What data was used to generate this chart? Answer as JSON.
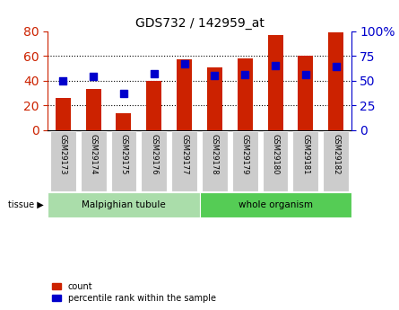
{
  "title": "GDS732 / 142959_at",
  "samples": [
    "GSM29173",
    "GSM29174",
    "GSM29175",
    "GSM29176",
    "GSM29177",
    "GSM29178",
    "GSM29179",
    "GSM29180",
    "GSM29181",
    "GSM29182"
  ],
  "counts": [
    26,
    33,
    14,
    40,
    57,
    51,
    58,
    77,
    60,
    79
  ],
  "percentiles": [
    50,
    54,
    37,
    57,
    67,
    55,
    56,
    65,
    56,
    64
  ],
  "tissue_groups": [
    {
      "label": "Malpighian tubule",
      "start": 0,
      "end": 5,
      "color": "#aaddaa"
    },
    {
      "label": "whole organism",
      "start": 5,
      "end": 10,
      "color": "#55cc55"
    }
  ],
  "bar_color": "#cc2200",
  "dot_color": "#0000cc",
  "left_axis_color": "#cc2200",
  "right_axis_color": "#0000cc",
  "left_ylim": [
    0,
    80
  ],
  "right_ylim": [
    0,
    100
  ],
  "left_yticks": [
    0,
    20,
    40,
    60,
    80
  ],
  "right_yticks": [
    0,
    25,
    50,
    75,
    100
  ],
  "right_yticklabels": [
    "0",
    "25",
    "50",
    "75",
    "100%"
  ],
  "grid_color": "black",
  "grid_style": "dotted",
  "grid_values": [
    20,
    40,
    60
  ],
  "bar_width": 0.5,
  "dot_size": 40,
  "tissue_label": "tissue",
  "legend_count_label": "count",
  "legend_pct_label": "percentile rank within the sample",
  "bg_color": "#ffffff",
  "plot_bg_color": "#ffffff",
  "tick_label_bg": "#cccccc"
}
